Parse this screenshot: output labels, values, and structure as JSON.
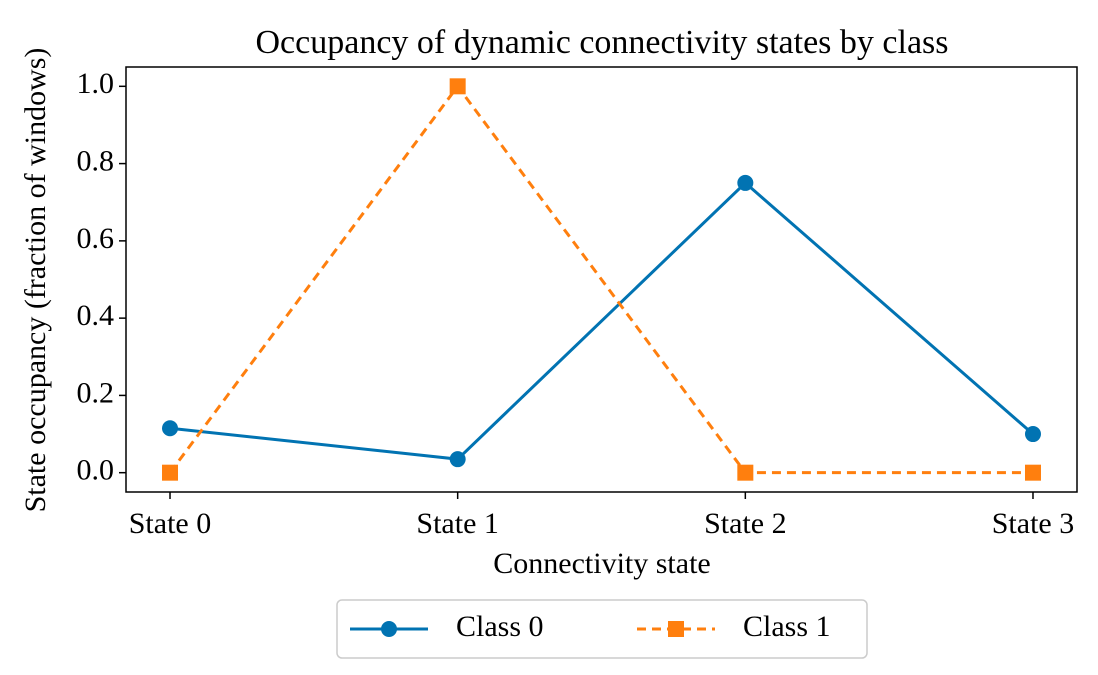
{
  "chart_data": {
    "type": "line",
    "title": "Occupancy of dynamic connectivity states by class",
    "x_label": "Connectivity state",
    "y_label": "State occupancy (fraction of windows)",
    "categories": [
      "State 0",
      "State 1",
      "State 2",
      "State 3"
    ],
    "series": [
      {
        "name": "Class 0",
        "color": "#0173b2",
        "marker": "circle",
        "linestyle": "solid",
        "values": [
          0.115,
          0.035,
          0.75,
          0.1
        ]
      },
      {
        "name": "Class 1",
        "color": "#ff7f0e",
        "marker": "square",
        "linestyle": "dashed",
        "values": [
          0,
          1,
          0,
          0
        ]
      }
    ],
    "ylim": [
      -0.05,
      1.05
    ],
    "yticks": [
      {
        "value": 0,
        "label": "0.0"
      },
      0.2,
      0.4,
      0.6,
      0.8,
      {
        "value": 1,
        "label": "1.0"
      }
    ],
    "legend": "below",
    "grid": false
  }
}
